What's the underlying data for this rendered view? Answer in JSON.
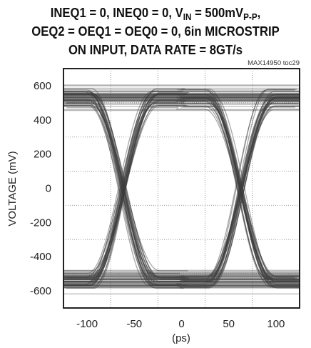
{
  "title": {
    "line1_prefix": "INEQ1 = 0, INEQ0 = 0, V",
    "line1_sub": "IN",
    "line1_mid": " = 500mV",
    "line1_sub2": "P-P",
    "line1_suffix": ",",
    "line2": "OEQ2 = OEQ1 = OEQ0 = 0, 6in MICROSTRIP",
    "line3": "ON INPUT, DATA RATE = 8GT/s"
  },
  "figure_code": "MAX14950 toc29",
  "chart_data": {
    "type": "eye-diagram",
    "xlabel": "(ps)",
    "ylabel": "VOLTAGE (mV)",
    "xlim": [
      -125,
      125
    ],
    "ylim": [
      -700,
      700
    ],
    "xticks": [
      -100,
      -50,
      0,
      50,
      100
    ],
    "yticks": [
      600,
      400,
      200,
      0,
      -200,
      -400,
      -600
    ],
    "grid": true,
    "unit_interval_ps": 125,
    "crossing_points_ps": [
      -62.5,
      62.5
    ],
    "crossing_voltage_mV": 0,
    "high_level_mV": {
      "min": 440,
      "max": 620
    },
    "low_level_mV": {
      "min": -630,
      "max": -450
    },
    "trace_color": "#3c3c3c"
  }
}
